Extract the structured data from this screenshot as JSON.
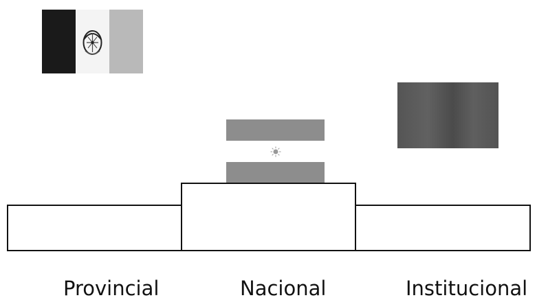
{
  "labels": {
    "provincial": "Provincial",
    "nacional": "Nacional",
    "institucional": "Institucional"
  },
  "icons": {
    "provincial_flag": "provincial-flag-icon",
    "national_flag": "national-flag-icon",
    "institutional_flag": "institutional-flag-icon"
  },
  "colors": {
    "outline": "#111111",
    "flag_dark": "#1a1a1a",
    "flag_gray": "#8d8d8d",
    "flag_light_gray": "#b9b9b9",
    "institutional_gray": "#5a5a5a"
  }
}
